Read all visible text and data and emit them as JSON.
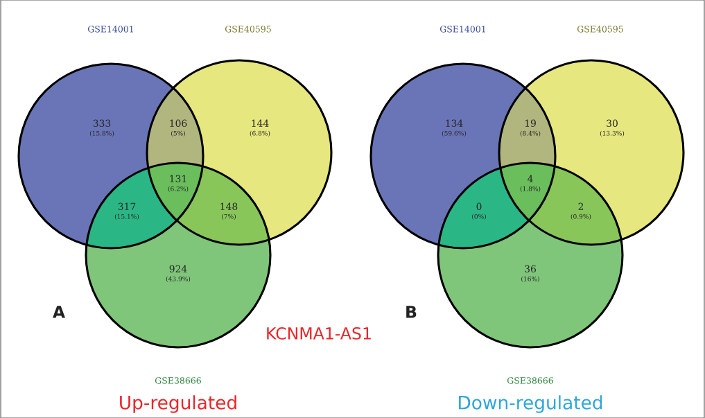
{
  "chart_data": [
    {
      "type": "other",
      "title": "Up-regulated",
      "data_labels": true,
      "values": [
        333,
        106,
        144,
        131,
        317,
        148,
        924
      ],
      "colors": [
        "#6a75b8",
        "#b1b67f",
        "#e6e77e",
        "#6abe5c",
        "#2bb686",
        "#88c65a",
        "#7fc67a"
      ],
      "annotations": [
        "(15.8%)",
        "(5%)",
        "(6.8%)",
        "(6.2%)",
        "(15.1%)",
        "(7%)",
        "(43.9%)",
        "GSE14001",
        "GSE40595",
        "GSE38666",
        "A",
        "KCNMA1-AS1"
      ]
    },
    {
      "type": "other",
      "title": "Down-regulated",
      "data_labels": true,
      "values": [
        134,
        19,
        30,
        4,
        0,
        2,
        36
      ],
      "colors": [
        "#6a75b8",
        "#b1b67f",
        "#e6e77e",
        "#6abe5c",
        "#2bb686",
        "#88c65a",
        "#7fc67a"
      ],
      "annotations": [
        "(59.6%)",
        "(8.4%)",
        "(13.3%)",
        "(1.8%)",
        "(0%)",
        "(0.9%)",
        "(16%)",
        "GSE14001",
        "GSE40595",
        "GSE38666",
        "B"
      ]
    }
  ]
}
